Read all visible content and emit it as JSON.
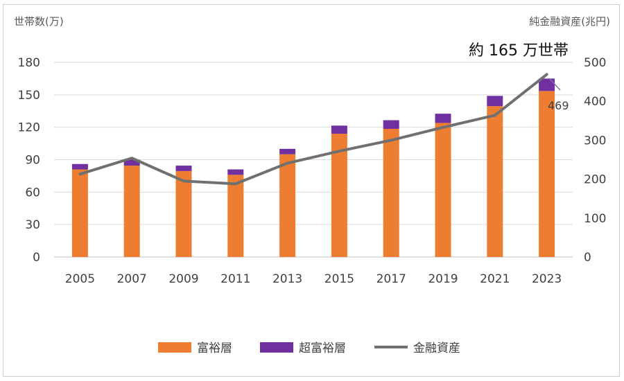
{
  "chart_data": {
    "type": "bar",
    "categories": [
      "2005",
      "2007",
      "2009",
      "2011",
      "2013",
      "2015",
      "2017",
      "2019",
      "2021",
      "2023"
    ],
    "series": [
      {
        "name": "富裕層",
        "kind": "bar",
        "axis": "left",
        "stack": "households",
        "color": "#ed7d31",
        "values": [
          81,
          84.5,
          79.5,
          76,
          95,
          114,
          118.5,
          124,
          139.5,
          153.5
        ]
      },
      {
        "name": "超富裕層",
        "kind": "bar",
        "axis": "left",
        "stack": "households",
        "color": "#7030a0",
        "values": [
          5,
          5.5,
          5,
          5,
          5,
          7.5,
          8,
          8.5,
          9.5,
          11.5
        ]
      },
      {
        "name": "金融資産",
        "kind": "line",
        "axis": "right",
        "color": "#707070",
        "values": [
          213,
          254,
          195,
          188,
          241,
          272,
          300,
          333,
          364,
          469
        ]
      }
    ],
    "y_left": {
      "label": "世帯数(万)",
      "ylim": [
        0,
        180
      ],
      "ticks": [
        "0",
        "30",
        "60",
        "90",
        "120",
        "150",
        "180"
      ]
    },
    "y_right": {
      "label": "純金融資産(兆円)",
      "ylim": [
        0,
        500
      ],
      "ticks": [
        "0",
        "100",
        "200",
        "300",
        "400",
        "500"
      ]
    },
    "annotations": {
      "households_2023": "約 165 万世帯",
      "assets_2023": "469"
    },
    "legend": {
      "position": "bottom"
    },
    "grid": true
  }
}
